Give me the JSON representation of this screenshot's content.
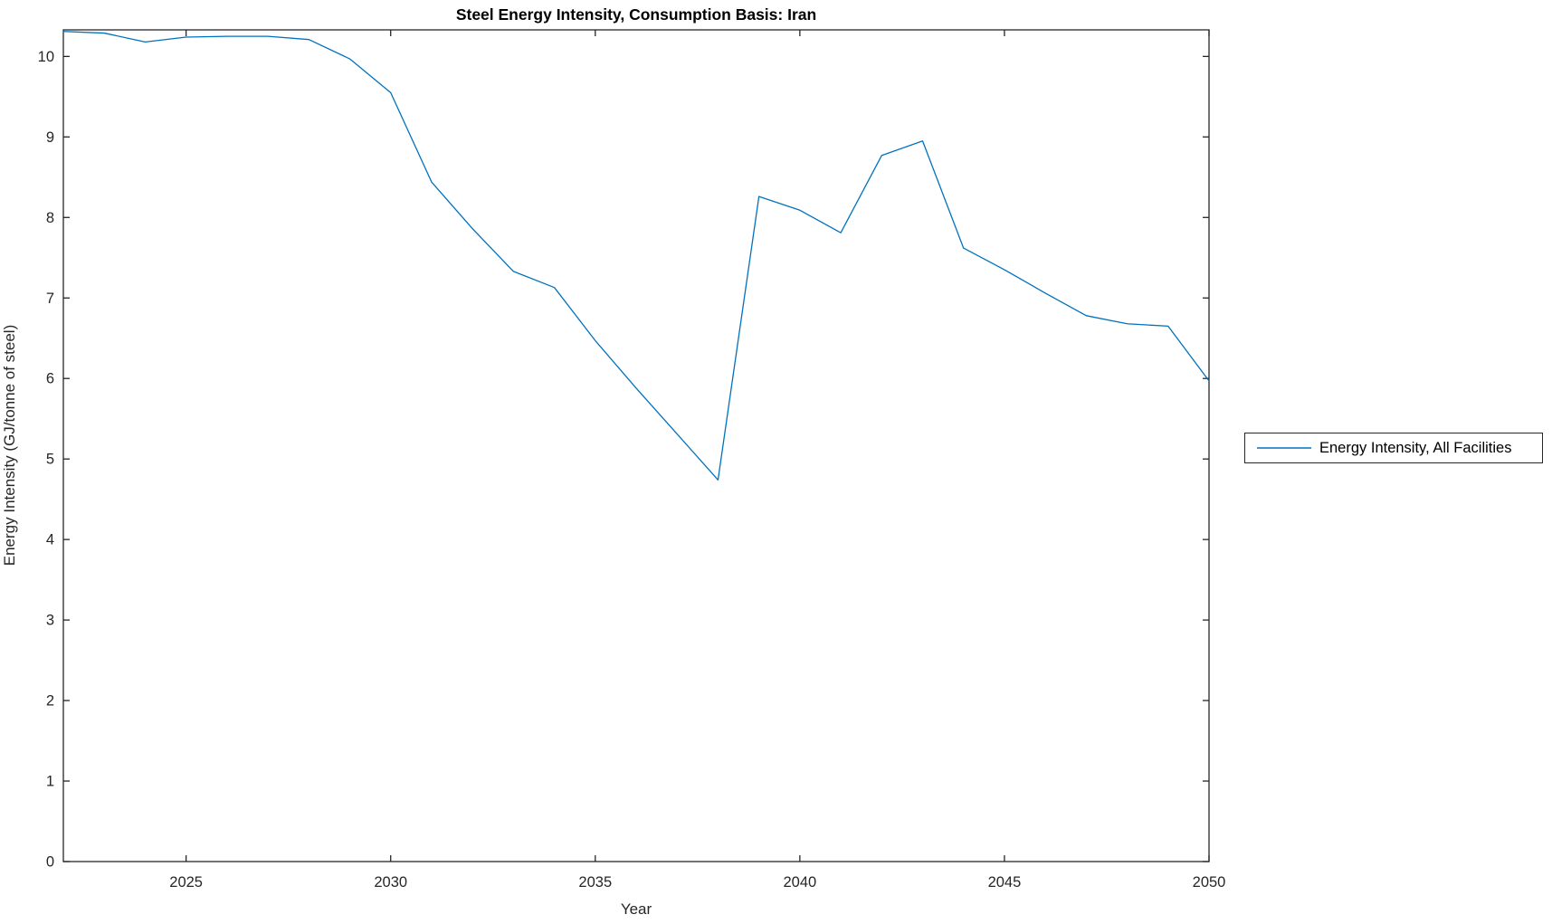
{
  "chart_data": {
    "type": "line",
    "title": "Steel Energy Intensity, Consumption Basis: Iran",
    "xlabel": "Year",
    "ylabel": "Energy Intensity (GJ/tonne of steel)",
    "xlim": [
      2022,
      2050
    ],
    "ylim": [
      0,
      10.33
    ],
    "x_ticks": [
      2025,
      2030,
      2035,
      2040,
      2045,
      2050
    ],
    "y_ticks": [
      0,
      1,
      2,
      3,
      4,
      5,
      6,
      7,
      8,
      9,
      10
    ],
    "grid": false,
    "box": true,
    "tick_direction": "in",
    "axis_color": "#262626",
    "background": "#ffffff",
    "legend": {
      "position": "outside-right",
      "entries": [
        "Energy Intensity, All Facilities"
      ]
    },
    "series": [
      {
        "name": "Energy Intensity, All Facilities",
        "color": "#0072BD",
        "x": [
          2022,
          2023,
          2024,
          2025,
          2026,
          2027,
          2028,
          2029,
          2030,
          2031,
          2032,
          2033,
          2034,
          2035,
          2036,
          2037,
          2038,
          2039,
          2040,
          2041,
          2042,
          2043,
          2044,
          2045,
          2046,
          2047,
          2048,
          2049,
          2050
        ],
        "values": [
          10.31,
          10.29,
          10.18,
          10.24,
          10.25,
          10.25,
          10.21,
          9.97,
          9.55,
          8.44,
          7.86,
          7.33,
          7.13,
          6.47,
          5.88,
          5.31,
          4.74,
          8.26,
          8.09,
          7.81,
          8.77,
          8.95,
          7.62,
          7.35,
          7.06,
          6.78,
          6.68,
          6.65,
          5.97
        ]
      }
    ]
  }
}
